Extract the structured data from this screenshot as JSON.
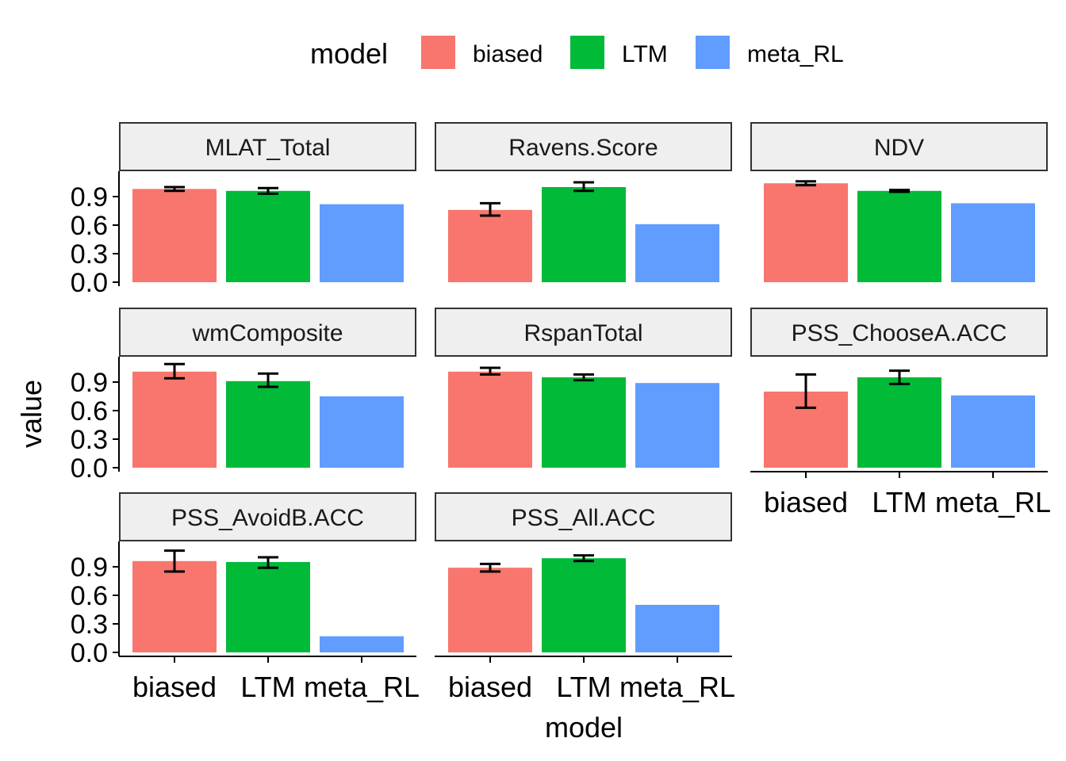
{
  "chart_data": {
    "type": "bar",
    "facet": true,
    "legend": {
      "title": "model",
      "position": "top",
      "entries": [
        {
          "name": "biased",
          "color": "#F8766D"
        },
        {
          "name": "LTM",
          "color": "#00BA38"
        },
        {
          "name": "meta_RL",
          "color": "#619CFF"
        }
      ]
    },
    "xlabel": "model",
    "ylabel": "value",
    "categories": [
      "biased",
      "LTM",
      "meta_RL"
    ],
    "yticks": [
      "0.0",
      "0.3",
      "0.6",
      "0.9"
    ],
    "ylim": [
      0,
      1.15
    ],
    "grid": false,
    "panels": [
      {
        "title": "MLAT_Total",
        "values": [
          0.98,
          0.96,
          0.82
        ],
        "errors": [
          [
            0.96,
            1.0
          ],
          [
            0.93,
            0.99
          ],
          null
        ]
      },
      {
        "title": "Ravens.Score",
        "values": [
          0.76,
          1.0,
          0.61
        ],
        "errors": [
          [
            0.7,
            0.83
          ],
          [
            0.96,
            1.05
          ],
          null
        ]
      },
      {
        "title": "NDV",
        "values": [
          1.04,
          0.96,
          0.83
        ],
        "errors": [
          [
            1.02,
            1.06
          ],
          [
            0.95,
            0.97
          ],
          null
        ]
      },
      {
        "title": "wmComposite",
        "values": [
          1.01,
          0.91,
          0.75
        ],
        "errors": [
          [
            0.94,
            1.09
          ],
          [
            0.85,
            0.99
          ],
          null
        ]
      },
      {
        "title": "RspanTotal",
        "values": [
          1.01,
          0.95,
          0.89
        ],
        "errors": [
          [
            0.98,
            1.05
          ],
          [
            0.92,
            0.98
          ],
          null
        ]
      },
      {
        "title": "PSS_ChooseA.ACC",
        "values": [
          0.8,
          0.95,
          0.76
        ],
        "errors": [
          [
            0.63,
            0.98
          ],
          [
            0.88,
            1.02
          ],
          null
        ]
      },
      {
        "title": "PSS_AvoidB.ACC",
        "values": [
          0.96,
          0.95,
          0.17
        ],
        "errors": [
          [
            0.85,
            1.07
          ],
          [
            0.89,
            1.0
          ],
          null
        ]
      },
      {
        "title": "PSS_All.ACC",
        "values": [
          0.89,
          0.99,
          0.5
        ],
        "errors": [
          [
            0.85,
            0.93
          ],
          [
            0.96,
            1.02
          ],
          null
        ]
      }
    ]
  }
}
